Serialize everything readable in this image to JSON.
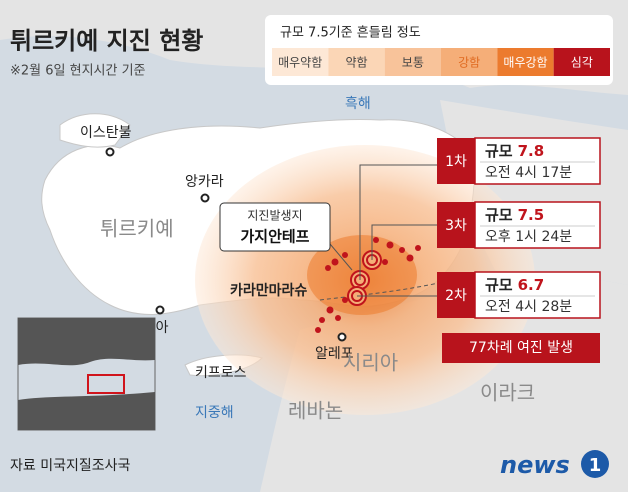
{
  "header": {
    "title": "튀르키예 지진 현황",
    "subtitle": "※2월 6일 현지시간 기준"
  },
  "legend": {
    "title": "규모 7.5기준 흔들림 정도",
    "items": [
      {
        "label": "매우약함",
        "color": "#fde8d6",
        "text_color": "#444444"
      },
      {
        "label": "약함",
        "color": "#fbd6b6",
        "text_color": "#444444"
      },
      {
        "label": "보통",
        "color": "#f8c39a",
        "text_color": "#444444"
      },
      {
        "label": "강함",
        "color": "#f5ae78",
        "text_color": "#e06a20"
      },
      {
        "label": "매우강함",
        "color": "#ec7b2e",
        "text_color": "#ffffff"
      },
      {
        "label": "심각",
        "color": "#b8131c",
        "text_color": "#ffffff"
      }
    ]
  },
  "places": {
    "black_sea": "흑해",
    "istanbul": "이스탄불",
    "ankara": "앙카라",
    "turkiye": "튀르키예",
    "kahramanmaras": "카라만마라슈",
    "antalya": "안탈리아",
    "cyprus": "키프로스",
    "aleppo": "알레포",
    "syria": "시리아",
    "mediterranean": "지중해",
    "lebanon": "레바논",
    "iraq": "이라크"
  },
  "epicenter": {
    "caption": "지진발생지",
    "name": "가지안테프"
  },
  "quakes": [
    {
      "order": "1차",
      "label": "규모",
      "magnitude": "7.8",
      "time": "오전 4시 17분"
    },
    {
      "order": "3차",
      "label": "규모",
      "magnitude": "7.5",
      "time": "오후 1시 24분"
    },
    {
      "order": "2차",
      "label": "규모",
      "magnitude": "6.7",
      "time": "오전 4시 28분"
    }
  ],
  "aftershocks": "77차례 여진 발생",
  "source": "자료 미국지질조사국",
  "logo": {
    "word": "news",
    "mark": "1"
  }
}
